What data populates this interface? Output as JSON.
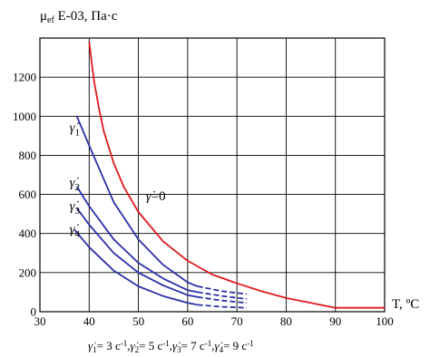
{
  "chart_data": {
    "type": "line",
    "ylabel_main": "μ",
    "ylabel_sub": "ef",
    "ylabel_rest": " E-03, Па·с",
    "xlabel": "T, ºC",
    "xlim": [
      30,
      100
    ],
    "ylim": [
      0,
      1400
    ],
    "xticks": [
      "30",
      "40",
      "50",
      "60",
      "70",
      "80",
      "90",
      "100"
    ],
    "yticks": [
      "0",
      "200",
      "400",
      "600",
      "800",
      "1000",
      "1200"
    ],
    "xtick_values": [
      30,
      40,
      50,
      60,
      70,
      80,
      90,
      100
    ],
    "ytick_values": [
      0,
      200,
      400,
      600,
      800,
      1000,
      1200
    ],
    "grid": true,
    "caption": "γ̇1 = 3 с-1, γ̇2 = 5 с-1, γ̇3 = 7 с-1, γ̇4 = 9 с-1",
    "caption_parts": [
      {
        "gamma": "γ̇",
        "sub": "1",
        "text": "= 3 с",
        "sup": "-1",
        "sep": ","
      },
      {
        "gamma": "γ̇",
        "sub": "2",
        "text": "= 5 с",
        "sup": "-1",
        "sep": ","
      },
      {
        "gamma": "γ̇",
        "sub": "3",
        "text": "= 7 с",
        "sup": "-1",
        "sep": ","
      },
      {
        "gamma": "γ̇",
        "sub": "4",
        "text": "= 9 с",
        "sup": "-1",
        "sep": ""
      }
    ],
    "series": [
      {
        "label_gamma": "γ̇",
        "label_sub": "",
        "label_rest": "=0",
        "label_at": [
          51.5,
          570
        ],
        "color": "#e0191e",
        "solid": [
          [
            40,
            1380
          ],
          [
            41,
            1180
          ],
          [
            42,
            1040
          ],
          [
            43,
            920
          ],
          [
            45,
            760
          ],
          [
            47,
            640
          ],
          [
            50,
            510
          ],
          [
            55,
            360
          ],
          [
            60,
            260
          ],
          [
            65,
            190
          ],
          [
            70,
            145
          ],
          [
            75,
            105
          ],
          [
            80,
            70
          ],
          [
            85,
            45
          ],
          [
            90,
            20
          ],
          [
            95,
            20
          ],
          [
            100,
            20
          ]
        ],
        "dashed": []
      },
      {
        "label_gamma": "γ̇",
        "label_sub": "1",
        "label_rest": "",
        "label_at": [
          36,
          920
        ],
        "color": "#2b2fa8",
        "solid": [
          [
            37.5,
            1000
          ],
          [
            40,
            850
          ],
          [
            45,
            560
          ],
          [
            50,
            370
          ],
          [
            55,
            240
          ],
          [
            60,
            150
          ],
          [
            62,
            130
          ]
        ],
        "dashed": [
          [
            62,
            130
          ],
          [
            67,
            105
          ],
          [
            72,
            90
          ]
        ]
      },
      {
        "label_gamma": "γ̇",
        "label_sub": "2",
        "label_rest": "",
        "label_at": [
          36,
          640
        ],
        "color": "#2b2fa8",
        "solid": [
          [
            37.5,
            640
          ],
          [
            40,
            540
          ],
          [
            45,
            370
          ],
          [
            50,
            250
          ],
          [
            55,
            170
          ],
          [
            60,
            110
          ],
          [
            62,
            100
          ]
        ],
        "dashed": [
          [
            62,
            100
          ],
          [
            67,
            80
          ],
          [
            72,
            65
          ]
        ]
      },
      {
        "label_gamma": "γ̇",
        "label_sub": "3",
        "label_rest": "",
        "label_at": [
          36,
          520
        ],
        "color": "#2b2fa8",
        "solid": [
          [
            37.5,
            530
          ],
          [
            40,
            445
          ],
          [
            45,
            300
          ],
          [
            50,
            200
          ],
          [
            55,
            135
          ],
          [
            60,
            85
          ],
          [
            62,
            75
          ]
        ],
        "dashed": [
          [
            62,
            75
          ],
          [
            67,
            57
          ],
          [
            72,
            45
          ]
        ]
      },
      {
        "label_gamma": "γ̇",
        "label_sub": "4",
        "label_rest": "",
        "label_at": [
          36,
          400
        ],
        "color": "#2b2fa8",
        "solid": [
          [
            37,
            420
          ],
          [
            40,
            330
          ],
          [
            45,
            210
          ],
          [
            50,
            130
          ],
          [
            55,
            80
          ],
          [
            60,
            45
          ],
          [
            62,
            35
          ]
        ],
        "dashed": [
          [
            62,
            35
          ],
          [
            67,
            25
          ],
          [
            72,
            20
          ]
        ]
      }
    ]
  }
}
